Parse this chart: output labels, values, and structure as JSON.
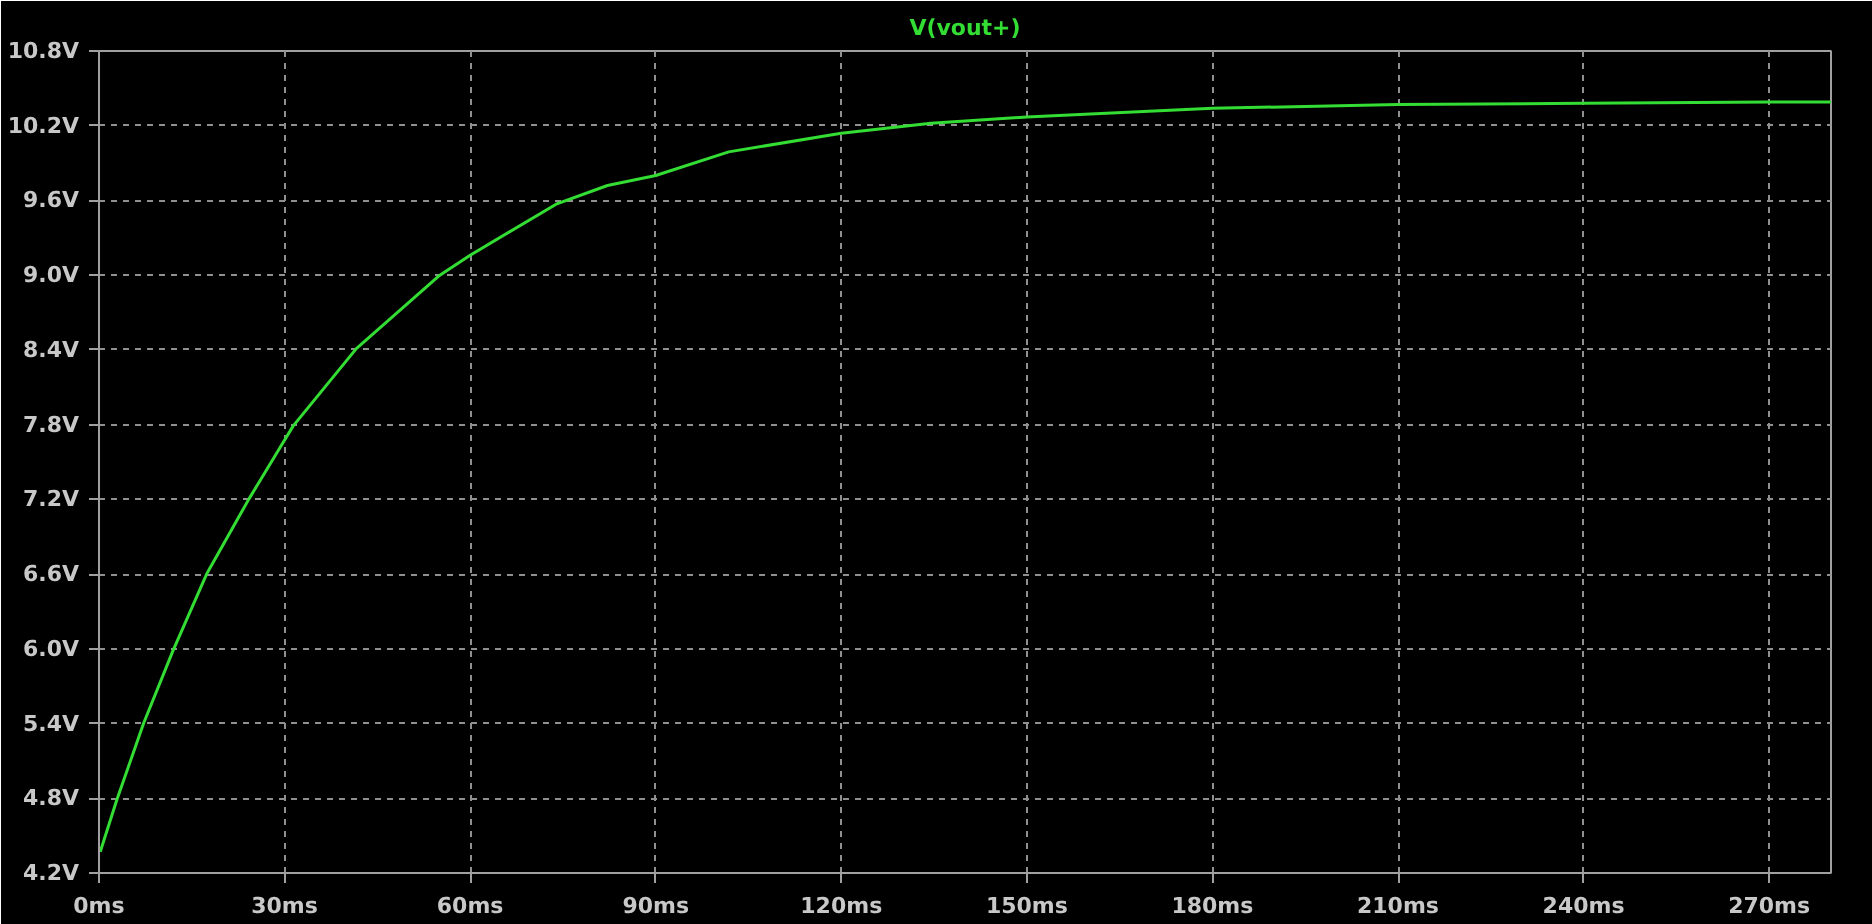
{
  "chart_data": {
    "type": "line",
    "x": [
      0.2,
      2.9,
      7.2,
      12.0,
      17.4,
      24.2,
      29.2,
      31.4,
      41.6,
      55.1,
      60,
      73.9,
      82.2,
      90,
      101.8,
      120,
      134.5,
      150,
      180,
      210,
      240,
      270,
      280
    ],
    "series": [
      {
        "name": "V(vout+)",
        "color": "#33dd33",
        "values": [
          4.37,
          4.79,
          5.4,
          5.99,
          6.6,
          7.2,
          7.61,
          7.79,
          8.41,
          9.0,
          9.16,
          9.57,
          9.72,
          9.8,
          9.99,
          10.14,
          10.22,
          10.27,
          10.34,
          10.37,
          10.38,
          10.39,
          10.39
        ]
      }
    ],
    "xlim": [
      0,
      280
    ],
    "ylim": [
      4.2,
      10.8
    ],
    "xticks": [
      {
        "value": 0,
        "label": "0ms"
      },
      {
        "value": 30,
        "label": "30ms"
      },
      {
        "value": 60,
        "label": "60ms"
      },
      {
        "value": 90,
        "label": "90ms"
      },
      {
        "value": 120,
        "label": "120ms"
      },
      {
        "value": 150,
        "label": "150ms"
      },
      {
        "value": 180,
        "label": "180ms"
      },
      {
        "value": 210,
        "label": "210ms"
      },
      {
        "value": 240,
        "label": "240ms"
      },
      {
        "value": 270,
        "label": "270ms"
      }
    ],
    "yticks": [
      {
        "value": 4.2,
        "label": "4.2V"
      },
      {
        "value": 4.8,
        "label": "4.8V"
      },
      {
        "value": 5.4,
        "label": "5.4V"
      },
      {
        "value": 6.0,
        "label": "6.0V"
      },
      {
        "value": 6.6,
        "label": "6.6V"
      },
      {
        "value": 7.2,
        "label": "7.2V"
      },
      {
        "value": 7.8,
        "label": "7.8V"
      },
      {
        "value": 8.4,
        "label": "8.4V"
      },
      {
        "value": 9.0,
        "label": "9.0V"
      },
      {
        "value": 9.6,
        "label": "9.6V"
      },
      {
        "value": 10.2,
        "label": "10.2V"
      },
      {
        "value": 10.8,
        "label": "10.8V"
      }
    ],
    "grid": true,
    "legend": "top",
    "marker": "none",
    "line_style": "solid"
  }
}
